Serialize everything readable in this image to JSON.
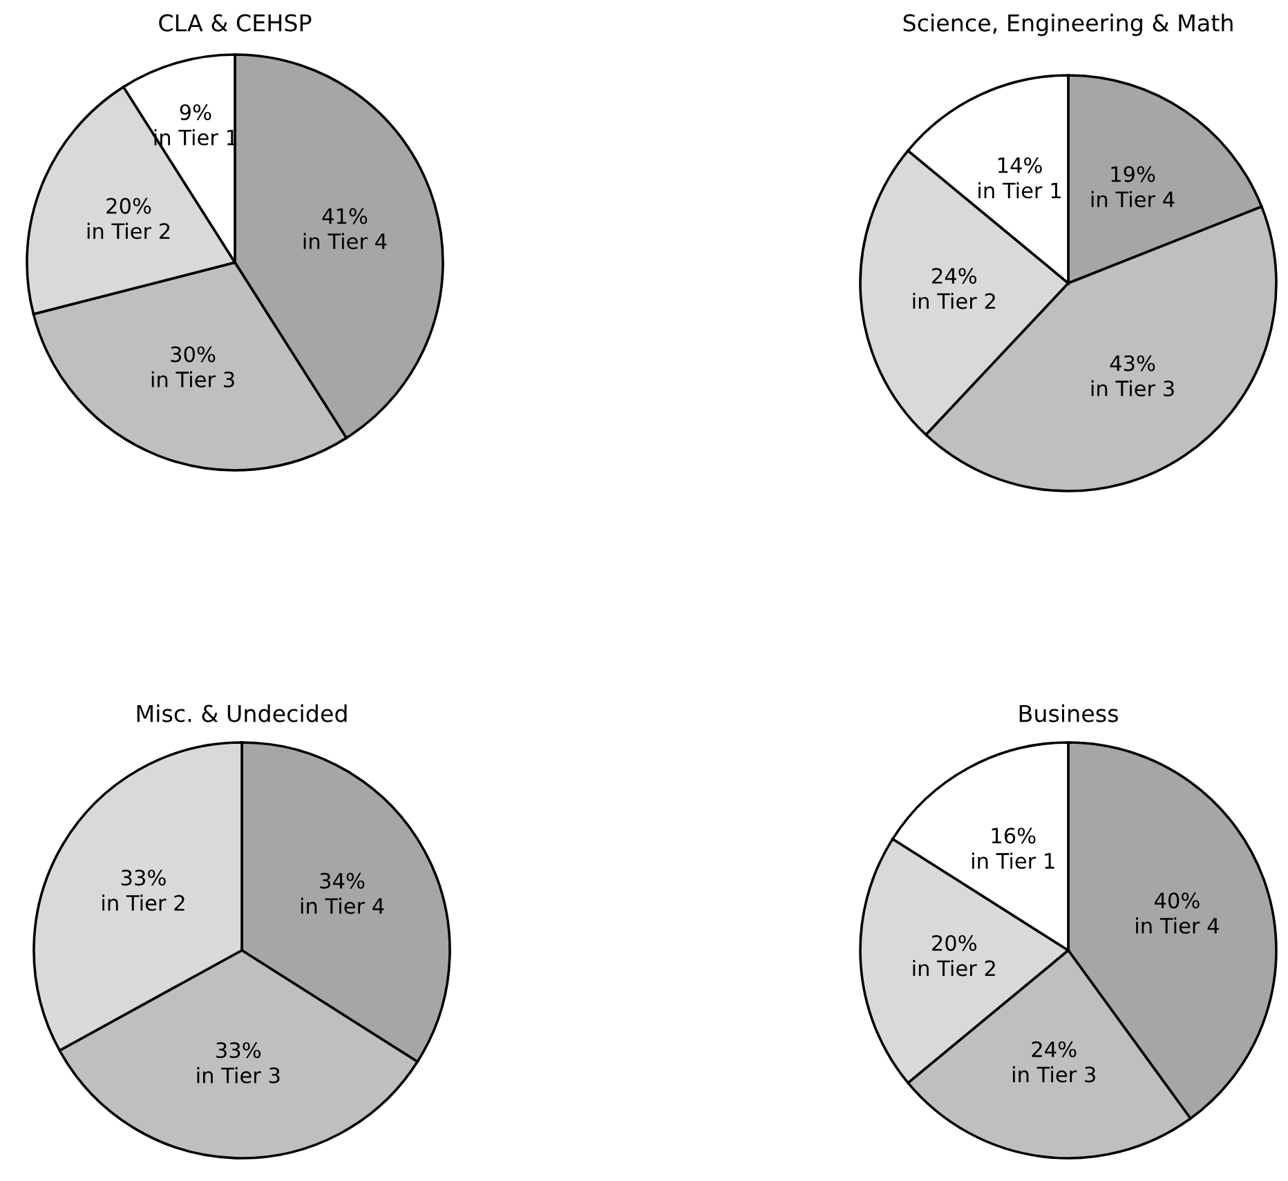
{
  "chart_data": [
    {
      "type": "pie",
      "title": "CLA & CEHSP",
      "categories": [
        "in Tier 4",
        "in Tier 3",
        "in Tier 2",
        "in Tier 1"
      ],
      "values": [
        41,
        30,
        20,
        9
      ],
      "value_labels": [
        "41%",
        "30%",
        "20%",
        "9%"
      ],
      "colors": [
        "#a6a6a6",
        "#bfbfbf",
        "#d9d9d9",
        "#ffffff"
      ]
    },
    {
      "type": "pie",
      "title": "Science, Engineering & Math",
      "categories": [
        "in Tier 4",
        "in Tier 3",
        "in Tier 2",
        "in Tier 1"
      ],
      "values": [
        19,
        43,
        24,
        14
      ],
      "value_labels": [
        "19%",
        "43%",
        "24%",
        "14%"
      ],
      "colors": [
        "#a6a6a6",
        "#bfbfbf",
        "#d9d9d9",
        "#ffffff"
      ]
    },
    {
      "type": "pie",
      "title": "Misc. & Undecided",
      "categories": [
        "in Tier 4",
        "in Tier 3",
        "in Tier 2"
      ],
      "values": [
        34,
        33,
        33
      ],
      "value_labels": [
        "34%",
        "33%",
        "33%"
      ],
      "colors": [
        "#a6a6a6",
        "#bfbfbf",
        "#d9d9d9"
      ]
    },
    {
      "type": "pie",
      "title": "Business",
      "categories": [
        "in Tier 4",
        "in Tier 3",
        "in Tier 2",
        "in Tier 1"
      ],
      "values": [
        40,
        24,
        20,
        16
      ],
      "value_labels": [
        "40%",
        "24%",
        "20%",
        "16%"
      ],
      "colors": [
        "#a6a6a6",
        "#bfbfbf",
        "#d9d9d9",
        "#ffffff"
      ]
    }
  ]
}
